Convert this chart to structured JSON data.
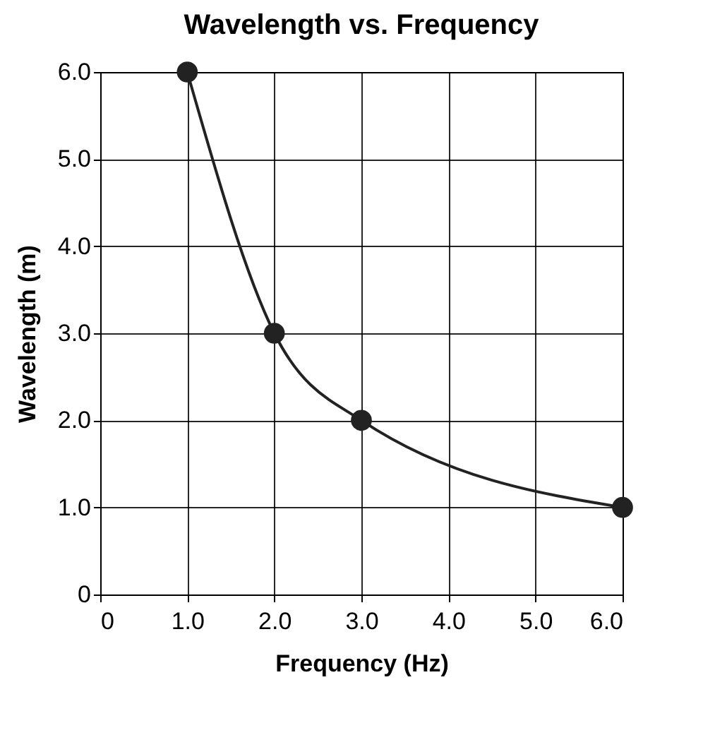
{
  "chart_data": {
    "type": "line",
    "title": "Wavelength vs. Frequency",
    "xlabel": "Frequency (Hz)",
    "ylabel": "Wavelength (m)",
    "x": [
      1,
      2,
      3,
      6
    ],
    "series": [
      {
        "color": "#222222",
        "values": [
          6,
          3,
          2,
          1
        ]
      }
    ],
    "xlim": [
      0,
      6
    ],
    "ylim": [
      0,
      6
    ],
    "xticks": [
      0,
      {
        "value": 1,
        "label": "1.0"
      },
      {
        "value": 2,
        "label": "2.0"
      },
      {
        "value": 3,
        "label": "3.0"
      },
      {
        "value": 4,
        "label": "4.0"
      },
      {
        "value": 5,
        "label": "5.0"
      },
      {
        "value": 6,
        "label": "6.0"
      }
    ],
    "yticks": [
      0,
      {
        "value": 1,
        "label": "1.0"
      },
      {
        "value": 2,
        "label": "2.0"
      },
      {
        "value": 3,
        "label": "3.0"
      },
      {
        "value": 4,
        "label": "4.0"
      },
      {
        "value": 5,
        "label": "5.0"
      },
      {
        "value": 6,
        "label": "6.0"
      }
    ],
    "grid": true,
    "marker": "circle",
    "line_style": "solid"
  }
}
